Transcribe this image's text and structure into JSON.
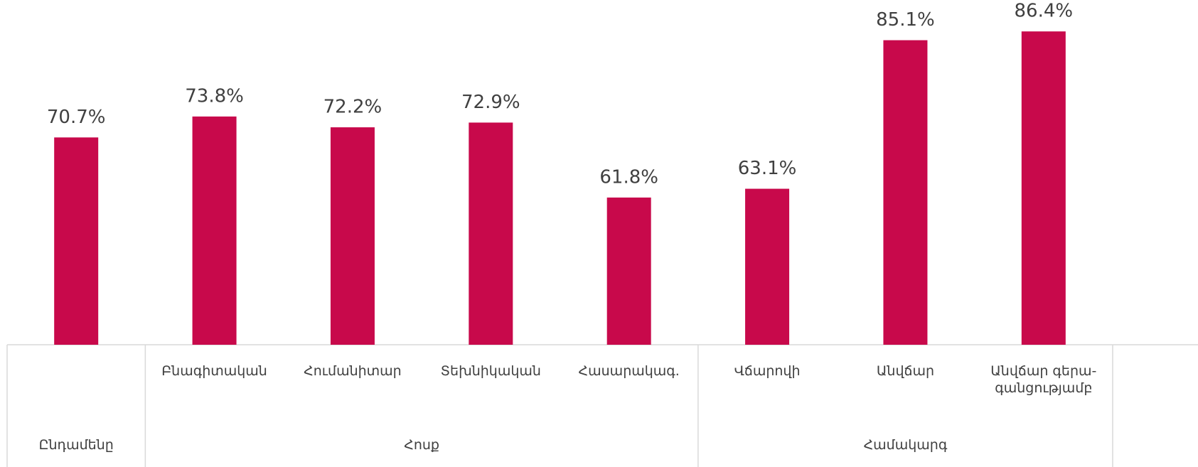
{
  "chart_data": {
    "type": "bar",
    "categories": [
      null,
      "Բնագիտական",
      "Հումանիտար",
      "Տեխնիկական",
      "Հասարակագ.",
      "Վճարովի",
      "Անվճար",
      "Անվճար գերա-գանցությամբ"
    ],
    "groups": [
      {
        "name": "Ընդամենը",
        "size": 1
      },
      {
        "name": "Հոսք",
        "size": 4
      },
      {
        "name": "Համակարգ",
        "size": 3
      }
    ],
    "values": [
      70.7,
      73.8,
      72.2,
      72.9,
      61.8,
      63.1,
      85.1,
      86.4
    ],
    "value_labels": [
      "70.7%",
      "73.8%",
      "72.2%",
      "72.9%",
      "61.8%",
      "63.1%",
      "85.1%",
      "86.4%"
    ],
    "color": "#c8094b",
    "ylim": [
      40,
      90
    ],
    "grid": false
  }
}
